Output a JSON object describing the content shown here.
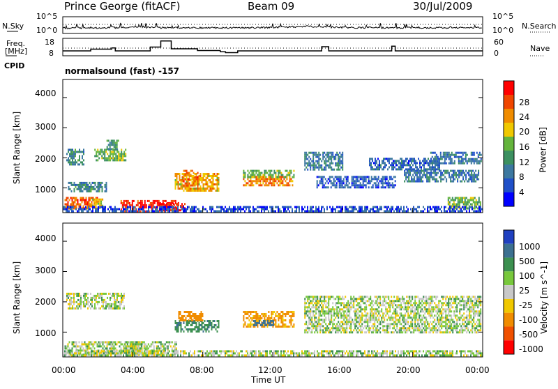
{
  "header": {
    "station": "Prince George (fitACF)",
    "beam": "Beam 09",
    "date": "30/Jul/2009"
  },
  "top_panels": {
    "nsky_label": "N.Sky",
    "nsearch_label": "N.Search",
    "freq_label_line1": "Freq.",
    "freq_label_line2": "[MHz]",
    "nave_label": "Nave",
    "cpid_label": "CPID",
    "cpid_value": "normalsound (fast) -157",
    "noise_ticks": [
      "10^5",
      "10^0"
    ],
    "freq_ticks": [
      "18",
      "8"
    ],
    "nave_ticks": [
      "60",
      "0"
    ]
  },
  "power_panel": {
    "colorbar_title": "Power [dB]",
    "colorbar_ticks": [
      "28",
      "24",
      "20",
      "16",
      "12",
      "8",
      "4"
    ],
    "colors": [
      "#0000ff",
      "#2050c8",
      "#3c78a0",
      "#3c9060",
      "#64b43c",
      "#f0c800",
      "#f08c00",
      "#f04600",
      "#ff0000"
    ]
  },
  "velocity_panel": {
    "colorbar_title": "Velocity [m s^-1]",
    "colorbar_ticks": [
      "1000",
      "500",
      "100",
      "25",
      "-25",
      "-100",
      "-500",
      "-1000"
    ],
    "colors": [
      "#2040c0",
      "#3c7090",
      "#3c9050",
      "#78c83c",
      "#c8c8c8",
      "#f0c800",
      "#f08c00",
      "#f05000",
      "#ff0000"
    ]
  },
  "axes": {
    "ylabel": "Slant Range [km]",
    "xlabel": "Time UT",
    "yticks": [
      "4000",
      "3000",
      "2000",
      "1000"
    ],
    "xticks": [
      "00:00",
      "04:00",
      "08:00",
      "12:00",
      "16:00",
      "20:00",
      "00:00"
    ]
  },
  "chart_data": [
    {
      "type": "heatmap",
      "title": "Power [dB]",
      "xlabel": "",
      "ylabel": "Slant Range [km]",
      "xlim": [
        0,
        24
      ],
      "ylim": [
        180,
        4600
      ],
      "colorscale_range": [
        0,
        30
      ],
      "regions": [
        {
          "t0": 0.1,
          "t1": 2.0,
          "r0": 300,
          "r1": 700,
          "p": 24
        },
        {
          "t0": 1.6,
          "t1": 2.3,
          "r0": 350,
          "r1": 650,
          "p": 18
        },
        {
          "t0": 3.3,
          "t1": 6.6,
          "r0": 250,
          "r1": 600,
          "p": 27
        },
        {
          "t0": 5.5,
          "t1": 7.0,
          "r0": 250,
          "r1": 500,
          "p": 29
        },
        {
          "t0": 6.4,
          "t1": 8.9,
          "r0": 900,
          "r1": 1500,
          "p": 20
        },
        {
          "t0": 6.8,
          "t1": 7.8,
          "r0": 1100,
          "r1": 1600,
          "p": 23
        },
        {
          "t0": 10.3,
          "t1": 13.1,
          "r0": 1100,
          "r1": 1400,
          "p": 22
        },
        {
          "t0": 10.3,
          "t1": 13.2,
          "r0": 1350,
          "r1": 1600,
          "p": 14
        },
        {
          "t0": 0.2,
          "t1": 1.2,
          "r0": 1800,
          "r1": 2300,
          "p": 10
        },
        {
          "t0": 1.8,
          "t1": 3.6,
          "r0": 1900,
          "r1": 2300,
          "p": 14
        },
        {
          "t0": 2.5,
          "t1": 3.2,
          "r0": 2300,
          "r1": 2600,
          "p": 12
        },
        {
          "t0": 0.3,
          "t1": 2.5,
          "r0": 900,
          "r1": 1200,
          "p": 10
        },
        {
          "t0": 13.8,
          "t1": 16.0,
          "r0": 1600,
          "r1": 2200,
          "p": 9
        },
        {
          "t0": 14.5,
          "t1": 19.0,
          "r0": 1000,
          "r1": 1400,
          "p": 6
        },
        {
          "t0": 17.5,
          "t1": 21.5,
          "r0": 1600,
          "r1": 2000,
          "p": 7
        },
        {
          "t0": 19.5,
          "t1": 23.8,
          "r0": 1200,
          "r1": 1600,
          "p": 8
        },
        {
          "t0": 21.0,
          "t1": 23.9,
          "r0": 1800,
          "r1": 2200,
          "p": 8
        },
        {
          "t0": 22.0,
          "t1": 23.9,
          "r0": 350,
          "r1": 700,
          "p": 14
        },
        {
          "t0": 0,
          "t1": 24,
          "r0": 200,
          "r1": 400,
          "p": 5
        }
      ]
    },
    {
      "type": "heatmap",
      "title": "Velocity [m s^-1]",
      "xlabel": "Time UT",
      "ylabel": "Slant Range [km]",
      "xlim": [
        0,
        24
      ],
      "ylim": [
        180,
        4600
      ],
      "colorscale_range": [
        -1000,
        1000
      ],
      "regions": [
        {
          "t0": 0.1,
          "t1": 4.5,
          "r0": 250,
          "r1": 700,
          "v": 0
        },
        {
          "t0": 3.5,
          "t1": 6.5,
          "r0": 250,
          "r1": 700,
          "v": 0
        },
        {
          "t0": 0.2,
          "t1": 3.5,
          "r0": 1800,
          "r1": 2300,
          "v": 0
        },
        {
          "t0": 6.4,
          "t1": 8.9,
          "r0": 1000,
          "r1": 1400,
          "v": 80
        },
        {
          "t0": 6.6,
          "t1": 8.0,
          "r0": 1400,
          "r1": 1700,
          "v": -150
        },
        {
          "t0": 10.3,
          "t1": 13.2,
          "r0": 1150,
          "r1": 1700,
          "v": -120
        },
        {
          "t0": 10.8,
          "t1": 12.0,
          "r0": 1200,
          "r1": 1400,
          "v": 150
        },
        {
          "t0": 13.8,
          "t1": 23.9,
          "r0": 1000,
          "r1": 2200,
          "v": 0
        },
        {
          "t0": 4.8,
          "t1": 5.4,
          "r0": 200,
          "r1": 400,
          "v": -60
        },
        {
          "t0": 0,
          "t1": 24,
          "r0": 200,
          "r1": 400,
          "v": 0
        }
      ]
    },
    {
      "type": "line",
      "title": "N.Sky",
      "xlim": [
        0,
        24
      ],
      "ylim": [
        0,
        5
      ],
      "x": [
        0,
        2,
        4,
        6,
        8,
        10,
        12,
        14,
        16,
        18,
        20,
        22,
        24
      ],
      "values": [
        1.6,
        1.7,
        1.8,
        1.7,
        1.7,
        1.7,
        1.8,
        2.1,
        1.8,
        1.7,
        1.7,
        1.7,
        1.7
      ]
    },
    {
      "type": "line",
      "title": "Freq. [MHz]",
      "xlim": [
        0,
        24
      ],
      "ylim": [
        8,
        18
      ],
      "x": [
        0,
        1.6,
        2.8,
        3.0,
        3.9,
        5.0,
        5.6,
        6.2,
        7.7,
        9.0,
        9.3,
        10.0,
        14.8,
        15.2,
        18.8,
        19.0,
        24
      ],
      "values": [
        10.8,
        11.8,
        12.5,
        10.8,
        10.8,
        13.0,
        16.5,
        12.0,
        11.0,
        10.3,
        9.8,
        10.8,
        13.2,
        10.8,
        13.5,
        10.8,
        10.8
      ]
    }
  ]
}
